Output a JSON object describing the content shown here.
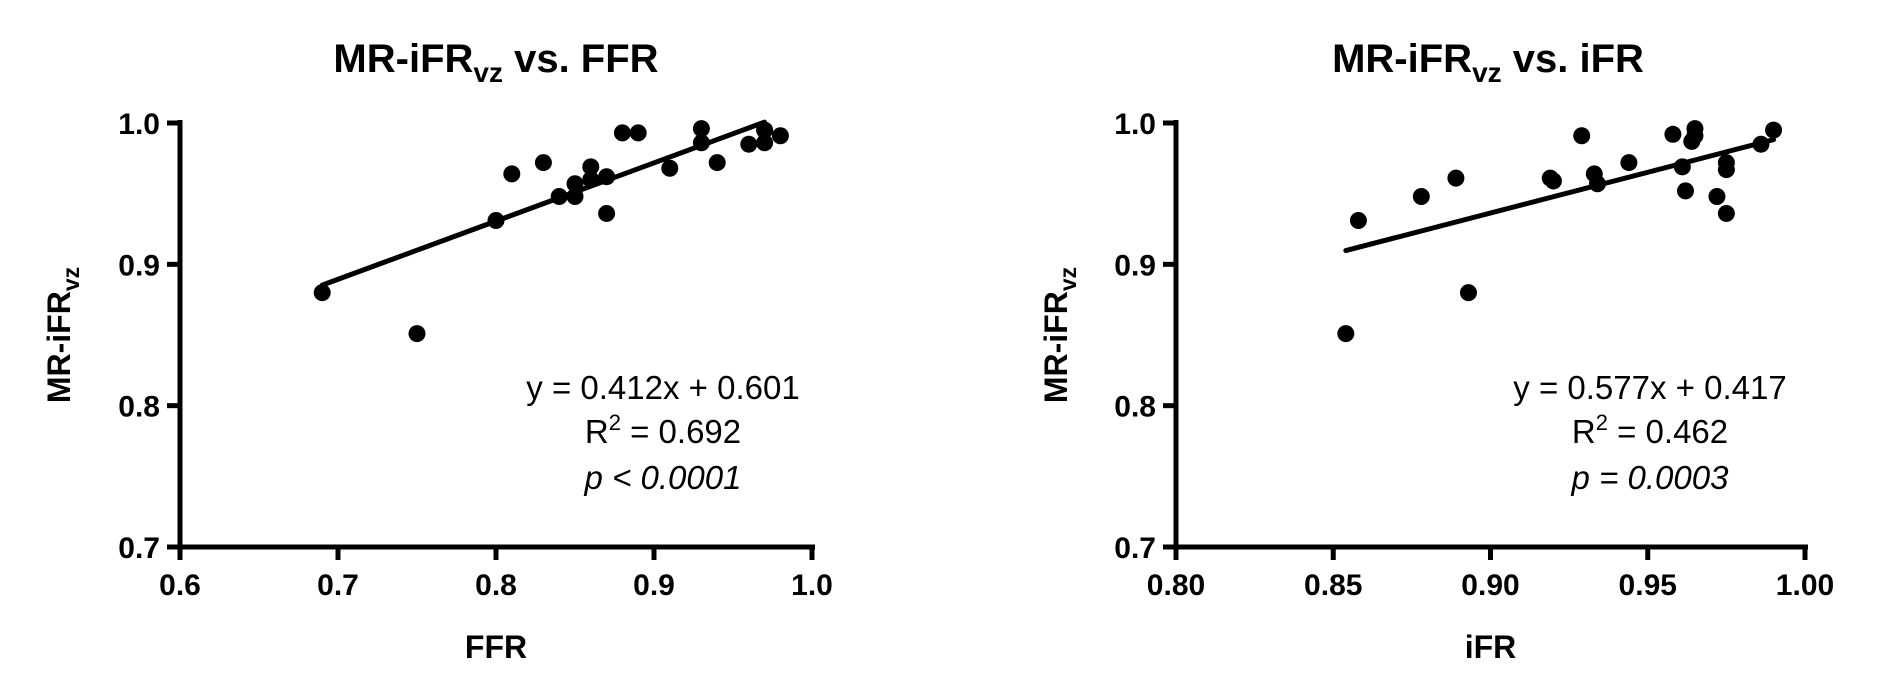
{
  "chart_data": [
    {
      "type": "scatter",
      "title": {
        "main": "MR-iFR",
        "sub": "vz",
        "rest": " vs. FFR"
      },
      "xlabel": "FFR",
      "ylabel": {
        "main": "MR-iFR",
        "sub": "vz"
      },
      "xlim": [
        0.6,
        1.0
      ],
      "ylim": [
        0.7,
        1.0
      ],
      "xticks": [
        "0.6",
        "0.7",
        "0.8",
        "0.9",
        "1.0"
      ],
      "yticks": [
        "0.7",
        "0.8",
        "0.9",
        "1.0"
      ],
      "grid": false,
      "points": [
        [
          0.69,
          0.88
        ],
        [
          0.75,
          0.851
        ],
        [
          0.8,
          0.931
        ],
        [
          0.81,
          0.964
        ],
        [
          0.83,
          0.972
        ],
        [
          0.84,
          0.948
        ],
        [
          0.85,
          0.948
        ],
        [
          0.85,
          0.957
        ],
        [
          0.86,
          0.969
        ],
        [
          0.86,
          0.96
        ],
        [
          0.87,
          0.962
        ],
        [
          0.87,
          0.936
        ],
        [
          0.88,
          0.993
        ],
        [
          0.89,
          0.993
        ],
        [
          0.91,
          0.968
        ],
        [
          0.93,
          0.996
        ],
        [
          0.93,
          0.986
        ],
        [
          0.94,
          0.972
        ],
        [
          0.96,
          0.985
        ],
        [
          0.97,
          0.995
        ],
        [
          0.97,
          0.986
        ],
        [
          0.98,
          0.991
        ]
      ],
      "fit": {
        "slope": 0.412,
        "intercept": 0.601,
        "x_range": [
          0.69,
          0.97
        ]
      },
      "annotation": {
        "equation": "y = 0.412x + 0.601",
        "r2_prefix": "R",
        "r2_sup": "2",
        "r2_value": " = 0.692",
        "p_value": "p < 0.0001"
      }
    },
    {
      "type": "scatter",
      "title": {
        "main": "MR-iFR",
        "sub": "vz",
        "rest": " vs. iFR"
      },
      "xlabel": "iFR",
      "ylabel": {
        "main": "MR-iFR",
        "sub": "vz"
      },
      "xlim": [
        0.8,
        1.0
      ],
      "ylim": [
        0.7,
        1.0
      ],
      "xticks": [
        "0.80",
        "0.85",
        "0.90",
        "0.95",
        "1.00"
      ],
      "yticks": [
        "0.7",
        "0.8",
        "0.9",
        "1.0"
      ],
      "grid": false,
      "points": [
        [
          0.854,
          0.851
        ],
        [
          0.858,
          0.931
        ],
        [
          0.878,
          0.948
        ],
        [
          0.889,
          0.961
        ],
        [
          0.893,
          0.88
        ],
        [
          0.919,
          0.961
        ],
        [
          0.92,
          0.959
        ],
        [
          0.929,
          0.991
        ],
        [
          0.933,
          0.964
        ],
        [
          0.934,
          0.957
        ],
        [
          0.944,
          0.972
        ],
        [
          0.958,
          0.992
        ],
        [
          0.961,
          0.969
        ],
        [
          0.962,
          0.952
        ],
        [
          0.964,
          0.987
        ],
        [
          0.965,
          0.996
        ],
        [
          0.965,
          0.991
        ],
        [
          0.972,
          0.948
        ],
        [
          0.975,
          0.972
        ],
        [
          0.975,
          0.967
        ],
        [
          0.975,
          0.936
        ],
        [
          0.986,
          0.985
        ],
        [
          0.99,
          0.995
        ]
      ],
      "fit": {
        "slope": 0.577,
        "intercept": 0.417,
        "x_range": [
          0.854,
          0.99
        ]
      },
      "annotation": {
        "equation": "y = 0.577x + 0.417",
        "r2_prefix": "R",
        "r2_sup": "2",
        "r2_value": " = 0.462",
        "p_value": "p = 0.0003"
      }
    }
  ]
}
